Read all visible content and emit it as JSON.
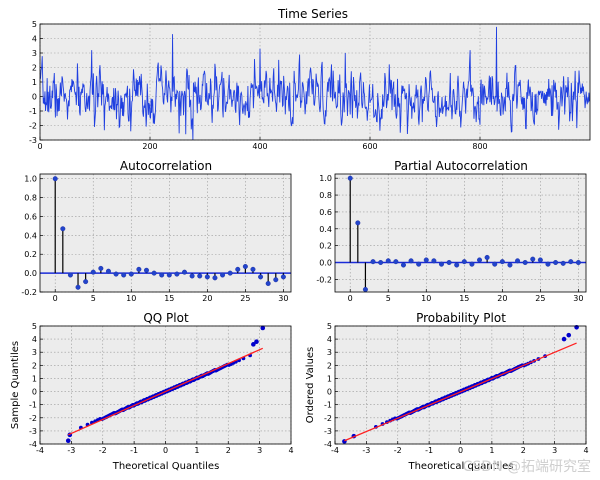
{
  "watermark": "CSDN @拓端研究室",
  "chart_data": [
    {
      "id": "ts",
      "type": "line",
      "title": "Time Series",
      "xlabel": "",
      "ylabel": "",
      "xlim": [
        0,
        1000
      ],
      "ylim": [
        -3,
        5
      ],
      "xticks": [
        0,
        200,
        400,
        600,
        800
      ],
      "yticks": [
        -3,
        -2,
        -1,
        0,
        1,
        2,
        3,
        4,
        5
      ],
      "grid": true,
      "series": [
        {
          "name": "series",
          "color": "#1f3fe0",
          "seed": 7,
          "n": 1000,
          "ar": 0.46,
          "noise_sd": 0.82,
          "spikes": [
            {
              "x": 241,
              "y": 4.3
            },
            {
              "x": 400,
              "y": 3.3
            },
            {
              "x": 555,
              "y": 3.0
            },
            {
              "x": 830,
              "y": 4.8
            },
            {
              "x": 278,
              "y": -3.0
            },
            {
              "x": 265,
              "y": -2.6
            },
            {
              "x": 165,
              "y": -2.4
            },
            {
              "x": 655,
              "y": -2.5
            }
          ]
        }
      ]
    },
    {
      "id": "acf",
      "type": "stem",
      "title": "Autocorrelation",
      "xlim": [
        -2,
        31
      ],
      "ylim": [
        -0.2,
        1.05
      ],
      "xticks": [
        0,
        5,
        10,
        15,
        20,
        25,
        30
      ],
      "yticks": [
        -0.2,
        0.0,
        0.2,
        0.4,
        0.6,
        0.8,
        1.0
      ],
      "ytick_labels": [
        "-0.2",
        "0.0",
        "0.2",
        "0.4",
        "0.6",
        "0.8",
        "1.0"
      ],
      "lags": [
        0,
        1,
        2,
        3,
        4,
        5,
        6,
        7,
        8,
        9,
        10,
        11,
        12,
        13,
        14,
        15,
        16,
        17,
        18,
        19,
        20,
        21,
        22,
        23,
        24,
        25,
        26,
        27,
        28,
        29,
        30
      ],
      "values": [
        1.0,
        0.47,
        -0.02,
        -0.15,
        -0.09,
        0.01,
        0.05,
        0.02,
        -0.01,
        -0.02,
        -0.01,
        0.04,
        0.03,
        0.0,
        -0.02,
        -0.02,
        -0.01,
        0.01,
        -0.03,
        -0.03,
        -0.04,
        -0.05,
        -0.02,
        0.0,
        0.04,
        0.07,
        0.04,
        -0.04,
        -0.11,
        -0.07,
        -0.04
      ],
      "grid": true
    },
    {
      "id": "pacf",
      "type": "stem",
      "title": "Partial Autocorrelation",
      "xlim": [
        -2,
        31
      ],
      "ylim": [
        -0.35,
        1.05
      ],
      "xticks": [
        0,
        5,
        10,
        15,
        20,
        25,
        30
      ],
      "yticks": [
        -0.2,
        0.0,
        0.2,
        0.4,
        0.6,
        0.8,
        1.0
      ],
      "ytick_labels": [
        "-0.2",
        "0.0",
        "0.2",
        "0.4",
        "0.6",
        "0.8",
        "1.0"
      ],
      "lags": [
        0,
        1,
        2,
        3,
        4,
        5,
        6,
        7,
        8,
        9,
        10,
        11,
        12,
        13,
        14,
        15,
        16,
        17,
        18,
        19,
        20,
        21,
        22,
        23,
        24,
        25,
        26,
        27,
        28,
        29,
        30
      ],
      "values": [
        1.0,
        0.47,
        -0.32,
        0.01,
        0.0,
        0.02,
        0.01,
        -0.03,
        0.02,
        -0.02,
        0.03,
        0.02,
        -0.02,
        0.0,
        -0.03,
        0.01,
        -0.02,
        0.03,
        0.06,
        -0.02,
        0.01,
        -0.03,
        0.02,
        0.0,
        0.04,
        0.03,
        -0.02,
        0.0,
        -0.01,
        0.01,
        0.0
      ],
      "grid": true
    },
    {
      "id": "qq",
      "type": "scatter",
      "title": "QQ Plot",
      "xlabel": "Theoretical Quantiles",
      "ylabel": "Sample Quantiles",
      "xlim": [
        -4,
        4
      ],
      "ylim": [
        -4,
        5
      ],
      "xticks": [
        -4,
        -3,
        -2,
        -1,
        0,
        1,
        2,
        3,
        4
      ],
      "yticks": [
        -4,
        -3,
        -2,
        -1,
        0,
        1,
        2,
        3,
        4,
        5
      ],
      "n": 1000,
      "scale": 1.02,
      "point_color": "#0000cc",
      "line_color": "#ff2020",
      "line": {
        "x": [
          -3.1,
          3.1
        ],
        "y": [
          -3.3,
          3.3
        ]
      },
      "outliers": [
        [
          2.8,
          3.6
        ],
        [
          2.9,
          3.8
        ],
        [
          3.1,
          4.85
        ],
        [
          -3.1,
          -3.75
        ],
        [
          -3.05,
          -3.3
        ]
      ],
      "grid": true
    },
    {
      "id": "prob",
      "type": "scatter",
      "title": "Probability Plot",
      "xlabel": "Theoretical quantiles",
      "ylabel": "Ordered Values",
      "xlim": [
        -4,
        4
      ],
      "ylim": [
        -4,
        5
      ],
      "xticks": [
        -4,
        -3,
        -2,
        -1,
        0,
        1,
        2,
        3,
        4
      ],
      "yticks": [
        -4,
        -3,
        -2,
        -1,
        0,
        1,
        2,
        3,
        4,
        5
      ],
      "n": 1000,
      "scale": 1.0,
      "point_color": "#0000cc",
      "line_color": "#ff2020",
      "line": {
        "x": [
          -3.7,
          3.7
        ],
        "y": [
          -3.75,
          3.7
        ]
      },
      "outliers": [
        [
          3.3,
          4.0
        ],
        [
          3.45,
          4.3
        ],
        [
          3.7,
          4.9
        ],
        [
          -3.7,
          -3.8
        ],
        [
          -3.4,
          -3.4
        ]
      ],
      "grid": true
    }
  ]
}
